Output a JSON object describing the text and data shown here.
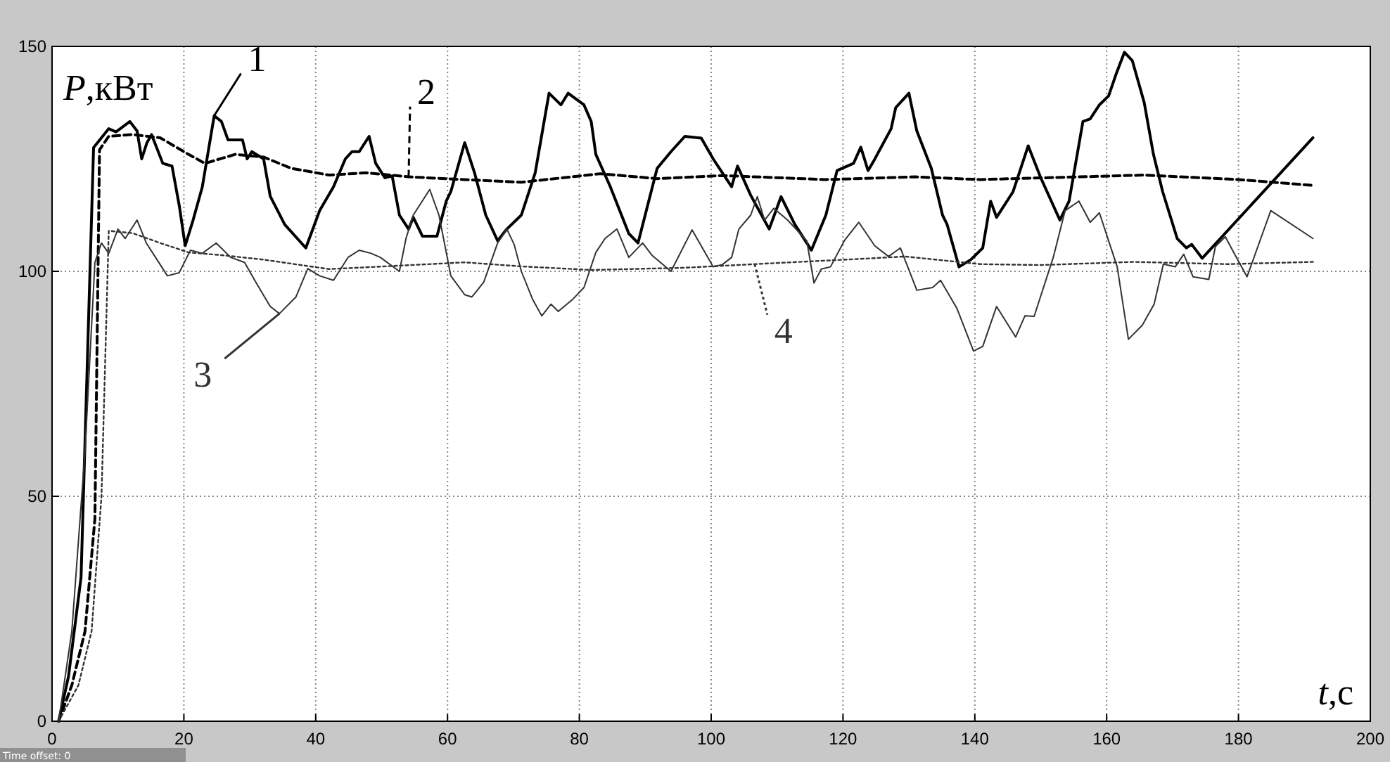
{
  "chart_data": {
    "type": "line",
    "xlabel": "t,с",
    "ylabel": "P,кВт",
    "xlim": [
      0,
      200
    ],
    "xticks": [
      0,
      20,
      40,
      60,
      80,
      100,
      120,
      140,
      160,
      180,
      200
    ],
    "ylim": [
      0,
      150
    ],
    "yticks": [
      0,
      50,
      100,
      150
    ],
    "grid": true,
    "annotations": [
      "Time offset: 0"
    ],
    "series": [
      {
        "name": "1",
        "color": "#000000",
        "line_style": "solid",
        "x": [
          1,
          2.5,
          4.4,
          6.3,
          8.6,
          9.7,
          11.8,
          12.9,
          13.6,
          14.4,
          15.1,
          16.8,
          18.2,
          19.3,
          20.2,
          21.4,
          22.8,
          24.6,
          25.7,
          26.7,
          28.9,
          29.6,
          30.3,
          32.1,
          33.1,
          35.3,
          38.5,
          40.6,
          42.7,
          44.5,
          45.5,
          46.6,
          48.1,
          49.1,
          50.5,
          51.6,
          52.7,
          54.1,
          54.8,
          56.2,
          58.4,
          59.8,
          60.5,
          62.6,
          64.1,
          65.8,
          67.6,
          69,
          71.2,
          73.3,
          75.4,
          77.2,
          78.3,
          80.7,
          81.8,
          82.5,
          84.7,
          87.5,
          88.9,
          91.8,
          93.9,
          96,
          98.5,
          100.3,
          103.1,
          104,
          106,
          108.8,
          110.6,
          112.7,
          115.2,
          117.4,
          119.1,
          121.6,
          122.7,
          123.8,
          124.8,
          127.3,
          128,
          130,
          131.2,
          133.4,
          135.1,
          135.8,
          137.6,
          139.4,
          141.2,
          142.4,
          143.3,
          145.8,
          148.1,
          150,
          152.9,
          154.3,
          156.4,
          157.5,
          158.9,
          160.3,
          161.4,
          162.7,
          163.9,
          165.7,
          167.1,
          168.5,
          170.7,
          172.1,
          172.9,
          174.5,
          191.3
        ],
        "values": [
          0,
          10,
          32,
          127.5,
          131.7,
          131,
          133.3,
          131.2,
          125,
          128.6,
          130.4,
          124,
          123.4,
          114.6,
          105.7,
          111.4,
          118.8,
          134.6,
          133.3,
          129.2,
          129.2,
          125,
          126.6,
          125,
          116.7,
          110.4,
          105.2,
          113.5,
          118.8,
          125,
          126.6,
          126.6,
          130,
          124,
          120.8,
          121.2,
          112.5,
          109.4,
          112,
          107.8,
          107.8,
          115.6,
          117.7,
          128.6,
          121.9,
          112.5,
          106.8,
          109.4,
          112.5,
          121.9,
          139.6,
          137,
          139.6,
          137,
          133.3,
          126,
          118.8,
          108.4,
          106.3,
          122.9,
          126.6,
          130,
          129.6,
          125,
          118.8,
          123.4,
          116.9,
          109.4,
          116.6,
          110.4,
          104.7,
          112.5,
          122.4,
          124,
          127.6,
          122.4,
          124.9,
          131.7,
          136.4,
          139.6,
          131.2,
          122.9,
          112.5,
          110.4,
          101,
          102.6,
          105.2,
          115.6,
          112,
          117.7,
          127.9,
          120.8,
          111.4,
          115.6,
          133.3,
          133.9,
          137,
          139,
          143.7,
          148.7,
          146.8,
          137.5,
          126,
          117.7,
          107.3,
          105.2,
          106,
          102.9,
          129.7
        ]
      },
      {
        "name": "2",
        "color": "#000000",
        "line_style": "dashed",
        "x": [
          1,
          3,
          5,
          6.5,
          7.2,
          8.6,
          12.2,
          16.4,
          20.7,
          23.2,
          27.8,
          32.1,
          36.3,
          42,
          47.7,
          54.1,
          62.6,
          71.2,
          83.2,
          91.8,
          101.7,
          117.4,
          130.9,
          140.8,
          165.7,
          179.9,
          191.3
        ],
        "values": [
          0,
          8,
          20,
          45,
          127,
          130,
          130.4,
          129.7,
          126,
          124,
          126,
          125.4,
          122.9,
          121.4,
          121.9,
          121,
          120.4,
          119.8,
          121.7,
          120.6,
          121.3,
          120.4,
          121,
          120.4,
          121.4,
          120.4,
          119.1
        ]
      },
      {
        "name": "3",
        "color": "#333333",
        "line_style": "solid",
        "x": [
          1,
          3,
          5,
          6.5,
          7.5,
          8.6,
          10,
          11.1,
          12.9,
          14.3,
          15.7,
          17.5,
          19.3,
          21,
          22.8,
          24.9,
          27.1,
          29.2,
          31,
          33.1,
          34.5,
          37,
          38.8,
          40.6,
          42.7,
          44.9,
          46.6,
          48.4,
          49.8,
          52.7,
          53.7,
          54.8,
          57.3,
          58.7,
          60.5,
          62.6,
          63.7,
          65.5,
          67.6,
          69,
          70.1,
          71.2,
          72.9,
          74.3,
          75.7,
          76.8,
          79,
          80.7,
          82.5,
          83.9,
          85.7,
          87.5,
          89.6,
          91,
          93.9,
          97.1,
          100.3,
          101.7,
          103.1,
          104.2,
          106,
          107,
          108.1,
          109.5,
          111.6,
          114.5,
          115.6,
          116.7,
          118.1,
          120.2,
          122.4,
          124.8,
          126.9,
          128.7,
          131.2,
          133.6,
          134.8,
          137.3,
          139.8,
          141.2,
          143.3,
          146.2,
          147.6,
          149,
          151.9,
          153.7,
          155.8,
          157.5,
          158.9,
          161.6,
          163.3,
          165.4,
          167.2,
          168.6,
          170.4,
          171.7,
          173.1,
          175.5,
          176.5,
          178,
          179.5,
          181.3,
          184.9,
          191.3
        ],
        "values": [
          0,
          20,
          60,
          102,
          106.3,
          104,
          109.4,
          107.3,
          111.4,
          106.3,
          103.1,
          99,
          99.7,
          104.7,
          104,
          106.3,
          103.1,
          102,
          97.4,
          92.2,
          90.6,
          94.3,
          100.6,
          99,
          98,
          103.1,
          104.7,
          104,
          103.1,
          100,
          107.3,
          112.5,
          118.2,
          112.5,
          99,
          94.8,
          94.3,
          97.6,
          106.3,
          109.4,
          106,
          100,
          93.8,
          90.1,
          92.7,
          91.1,
          93.8,
          96.4,
          104.2,
          107.3,
          109.4,
          103.1,
          106.3,
          103.6,
          100,
          109.2,
          101,
          101.5,
          103.1,
          109.4,
          112.5,
          116.6,
          111.4,
          114,
          111.4,
          106.8,
          97.4,
          100.5,
          101,
          106.8,
          110.9,
          105.7,
          103.3,
          105.2,
          95.8,
          96.4,
          98,
          91.7,
          82.3,
          83.3,
          92.2,
          85.4,
          90.1,
          90,
          103.1,
          113.5,
          115.6,
          110.9,
          113,
          101,
          84.9,
          88,
          92.7,
          101.6,
          101,
          103.8,
          98.8,
          98.2,
          105.5,
          107.7,
          103.6,
          98.8,
          113.5,
          107.3
        ]
      },
      {
        "name": "4",
        "color": "#333333",
        "line_style": "dotted",
        "x": [
          1,
          4,
          6,
          7.5,
          8.6,
          12.2,
          16.4,
          20.7,
          25.7,
          32.1,
          42,
          49.1,
          62.6,
          71.2,
          81.8,
          96,
          106.6,
          124.4,
          129.4,
          140.8,
          150,
          164.1,
          178.3,
          191.3
        ],
        "values": [
          0,
          8,
          20,
          50,
          109,
          108.5,
          106.3,
          104.2,
          103.6,
          102.6,
          100.5,
          101,
          102,
          101.1,
          100.3,
          100.8,
          101.6,
          102.9,
          103.3,
          101.6,
          101.4,
          102.1,
          101.6,
          102.1
        ]
      }
    ]
  }
}
